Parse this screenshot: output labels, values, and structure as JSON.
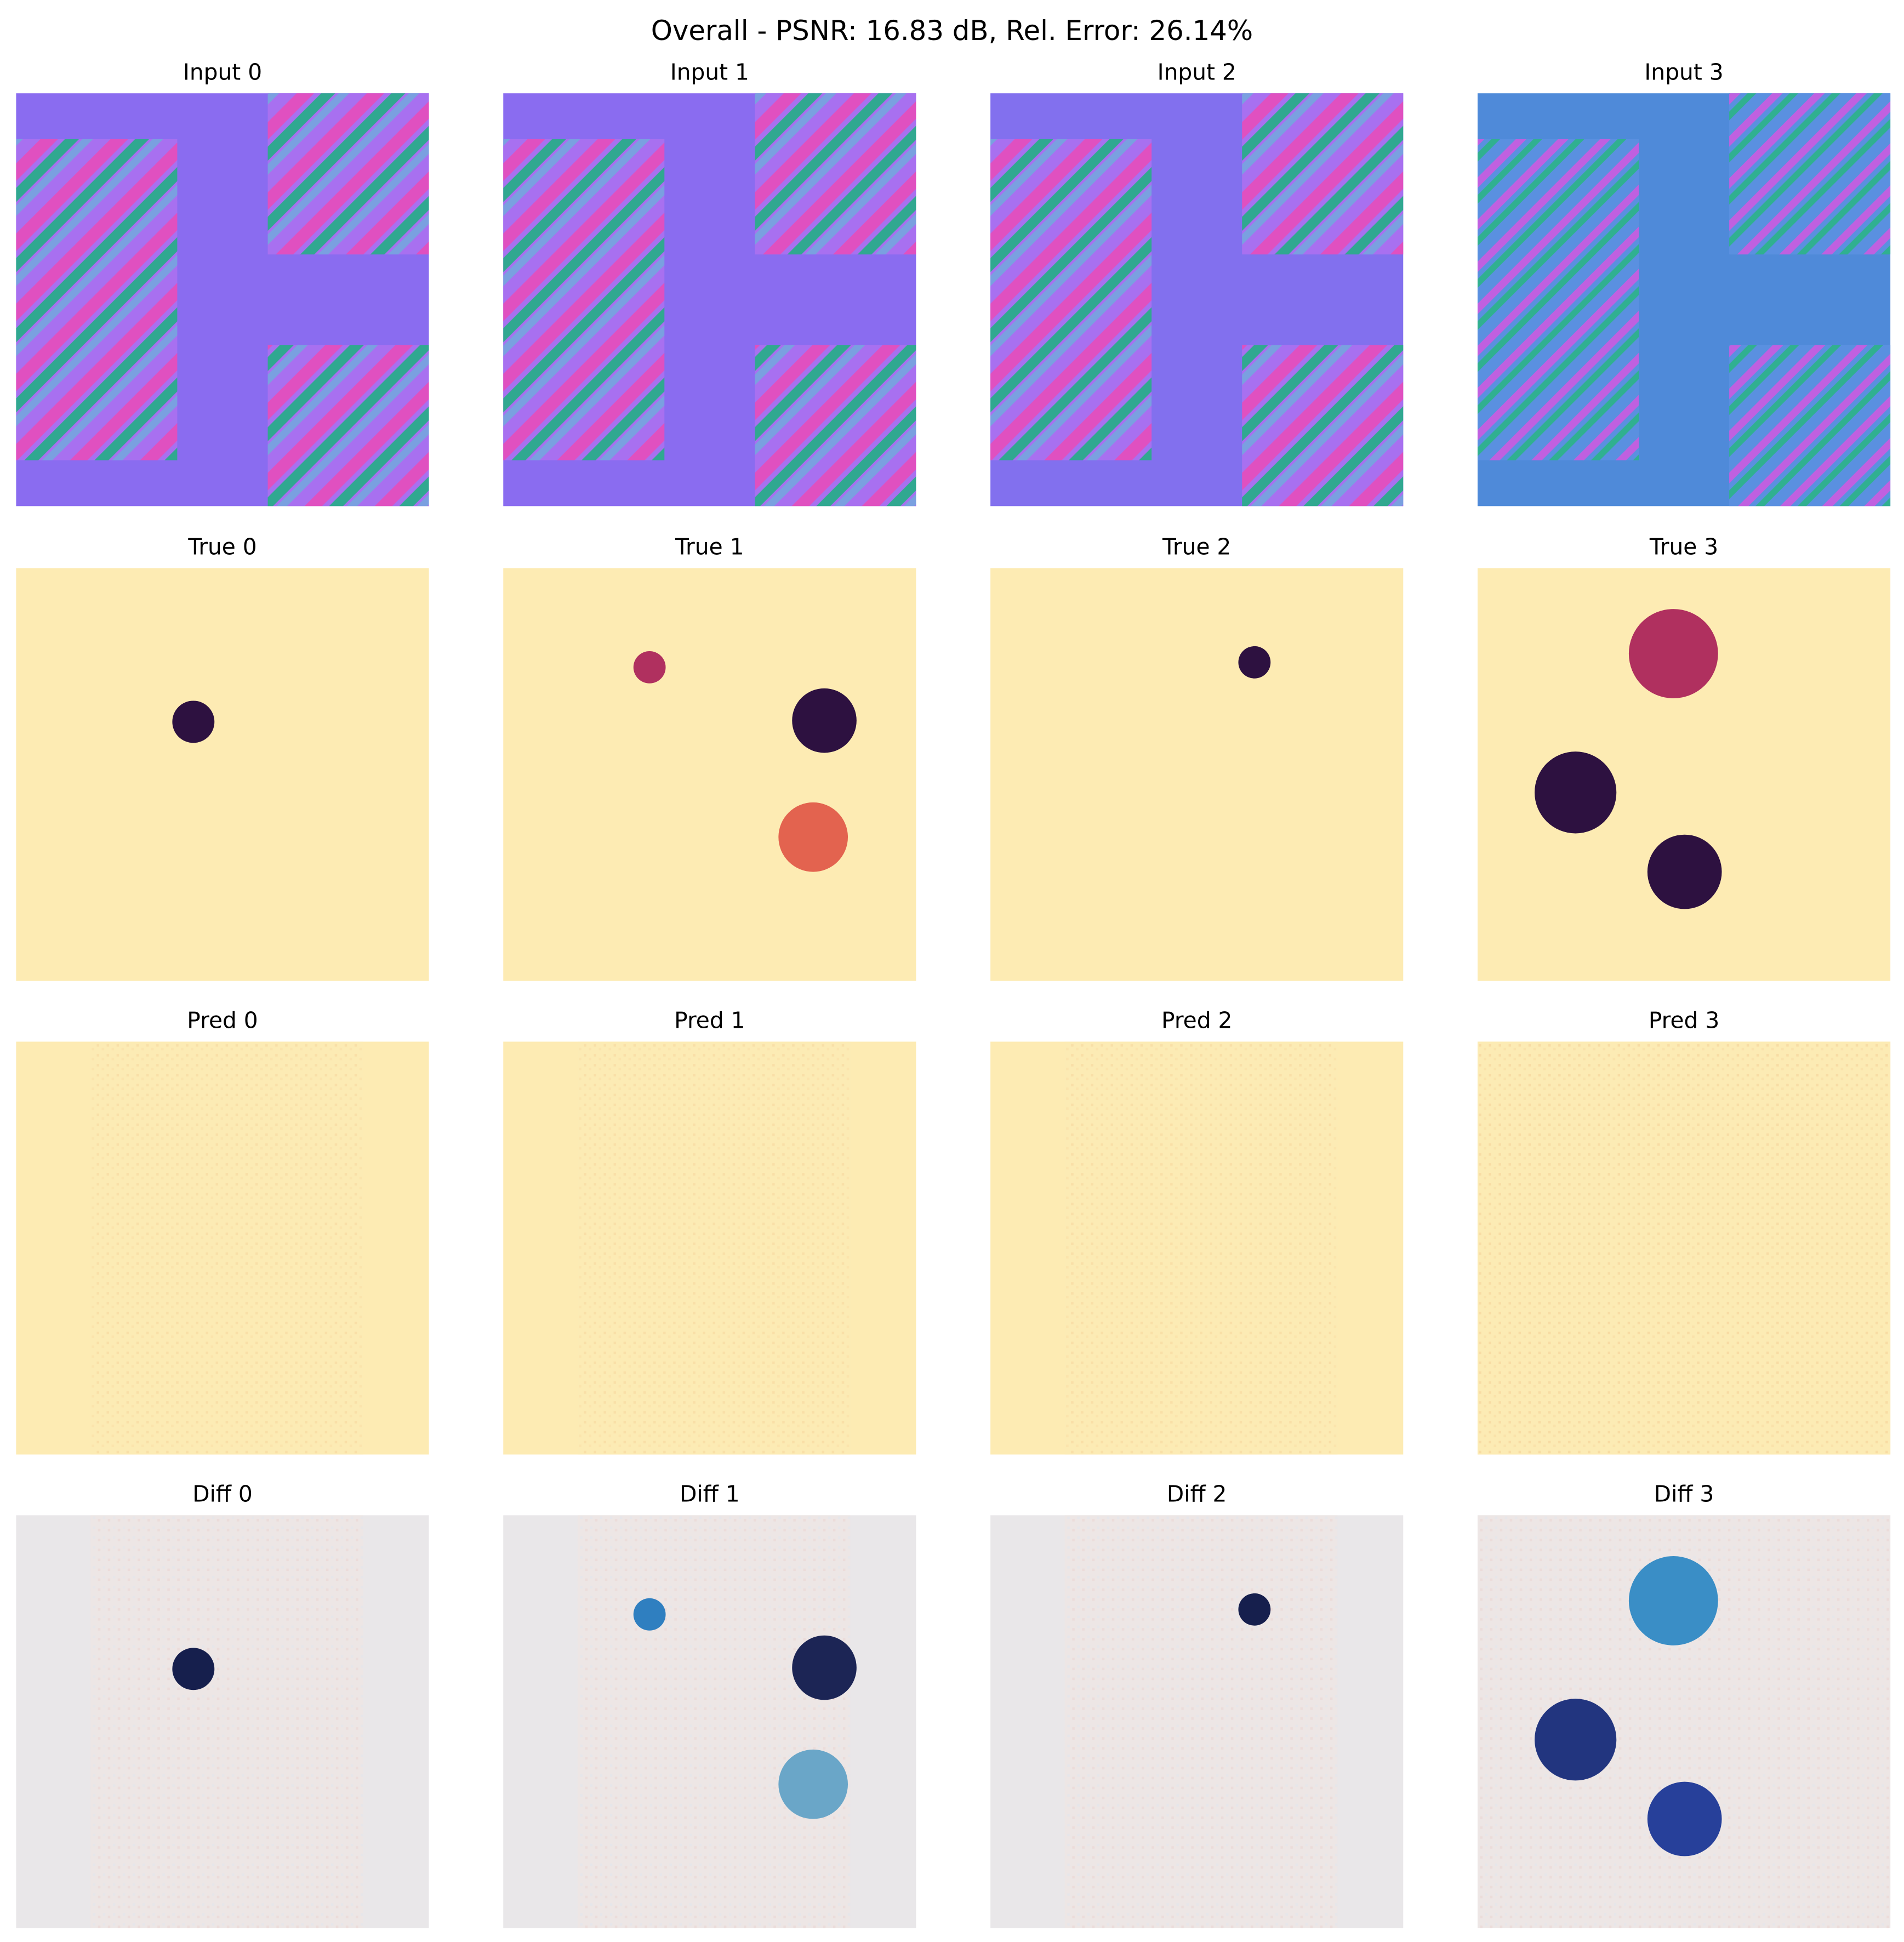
{
  "title": "Overall - PSNR: 16.83 dB, Rel. Error: 26.14%",
  "panels": [
    [
      "Input 0",
      "Input 1",
      "Input 2",
      "Input 3"
    ],
    [
      "True 0",
      "True 1",
      "True 2",
      "True 3"
    ],
    [
      "Pred 0",
      "Pred 1",
      "Pred 2",
      "Pred 3"
    ],
    [
      "Diff 0",
      "Diff 1",
      "Diff 2",
      "Diff 3"
    ]
  ]
}
